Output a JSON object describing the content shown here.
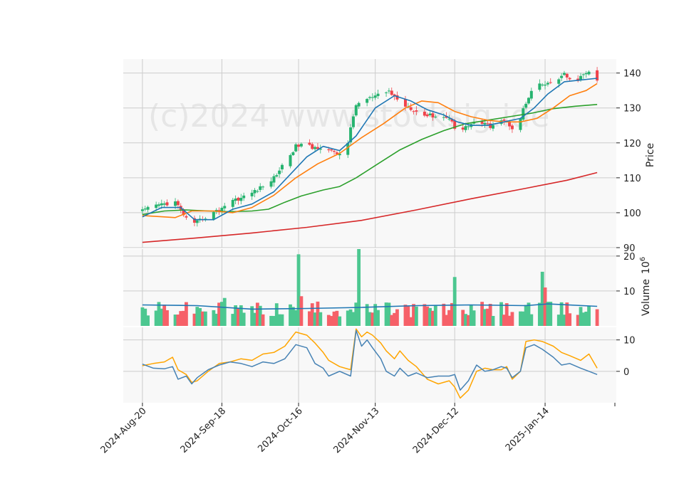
{
  "watermark": "(c)2024 www.stocksig.ide",
  "colors": {
    "up": "#26b36f",
    "down": "#f0434b",
    "up_vol": "#4cc790",
    "down_vol": "#f66068",
    "ma_short": "#1f77b4",
    "ma_mid": "#ff7f0e",
    "ma_long": "#2ca02c",
    "ma_200": "#d62728",
    "vol_ma": "#1f77b4",
    "ind_fast": "#4682b4",
    "ind_slow": "#ffa500",
    "grid": "#cccccc",
    "panel_bg": "#f8f8f8"
  },
  "chart_data": [
    {
      "type": "candlestick",
      "panel": "price",
      "ylabel": "Price",
      "ylim": [
        90,
        144
      ],
      "yticks": [
        90,
        100,
        110,
        120,
        130,
        140
      ],
      "x_range_days": [
        -7,
        173
      ],
      "xtick_labels": [
        "2024-Aug-20",
        "2024-Sep-18",
        "2024-Oct-16",
        "2024-Nov-13",
        "2024-Dec-12",
        "2025-Jan-14"
      ],
      "xtick_days": [
        0,
        29,
        57,
        85,
        114,
        147
      ],
      "candles_anchor": [
        [
          0,
          100.5
        ],
        [
          6,
          102.3
        ],
        [
          12,
          103.0
        ],
        [
          15,
          99.5
        ],
        [
          18,
          96.0
        ],
        [
          21,
          97.8
        ],
        [
          24,
          99.2
        ],
        [
          28,
          100.8
        ],
        [
          32,
          103.5
        ],
        [
          36,
          104.2
        ],
        [
          40,
          105.8
        ],
        [
          44,
          107.5
        ],
        [
          48,
          110.0
        ],
        [
          52,
          114.5
        ],
        [
          56,
          119.0
        ],
        [
          59,
          119.8
        ],
        [
          62,
          118.5
        ],
        [
          66,
          119.0
        ],
        [
          70,
          117.0
        ],
        [
          74,
          116.8
        ],
        [
          78,
          131.0
        ],
        [
          82,
          132.5
        ],
        [
          86,
          133.5
        ],
        [
          90,
          134.8
        ],
        [
          94,
          131.5
        ],
        [
          98,
          130.0
        ],
        [
          102,
          128.0
        ],
        [
          106,
          127.8
        ],
        [
          110,
          127.5
        ],
        [
          113,
          126.5
        ],
        [
          115,
          122.5
        ],
        [
          118,
          124.5
        ],
        [
          121,
          126.0
        ],
        [
          124,
          125.5
        ],
        [
          127,
          124.8
        ],
        [
          130,
          127.0
        ],
        [
          133,
          126.0
        ],
        [
          136,
          123.5
        ],
        [
          139,
          129.5
        ],
        [
          142,
          134.5
        ],
        [
          145,
          136.5
        ],
        [
          148,
          136.8
        ],
        [
          151,
          138.0
        ],
        [
          154,
          139.5
        ],
        [
          157,
          137.0
        ],
        [
          160,
          138.8
        ],
        [
          163,
          140.5
        ],
        [
          166,
          137.5
        ]
      ],
      "ma_short": [
        [
          0,
          98.8
        ],
        [
          7,
          101.5
        ],
        [
          14,
          101.5
        ],
        [
          19,
          98.0
        ],
        [
          26,
          98.0
        ],
        [
          33,
          101.0
        ],
        [
          40,
          102.5
        ],
        [
          48,
          106.0
        ],
        [
          54,
          111.0
        ],
        [
          60,
          116.0
        ],
        [
          66,
          119.0
        ],
        [
          72,
          117.8
        ],
        [
          78,
          122.0
        ],
        [
          85,
          130.0
        ],
        [
          92,
          133.5
        ],
        [
          98,
          132.0
        ],
        [
          104,
          129.5
        ],
        [
          110,
          128.0
        ],
        [
          115,
          126.0
        ],
        [
          120,
          125.0
        ],
        [
          126,
          125.0
        ],
        [
          132,
          126.0
        ],
        [
          138,
          127.0
        ],
        [
          143,
          130.0
        ],
        [
          148,
          134.0
        ],
        [
          154,
          137.5
        ],
        [
          160,
          138.0
        ],
        [
          166,
          138.5
        ]
      ],
      "ma_mid": [
        [
          0,
          99.2
        ],
        [
          8,
          98.8
        ],
        [
          12,
          98.6
        ],
        [
          18,
          100.5
        ],
        [
          26,
          100.5
        ],
        [
          33,
          100.0
        ],
        [
          40,
          101.5
        ],
        [
          48,
          105.0
        ],
        [
          56,
          110.0
        ],
        [
          64,
          114.0
        ],
        [
          72,
          117.0
        ],
        [
          80,
          121.5
        ],
        [
          88,
          125.5
        ],
        [
          96,
          130.0
        ],
        [
          102,
          132.0
        ],
        [
          108,
          131.5
        ],
        [
          114,
          129.0
        ],
        [
          120,
          127.5
        ],
        [
          126,
          126.5
        ],
        [
          132,
          126.0
        ],
        [
          138,
          126.0
        ],
        [
          144,
          127.0
        ],
        [
          150,
          130.0
        ],
        [
          156,
          133.5
        ],
        [
          162,
          135.0
        ],
        [
          166,
          137.0
        ]
      ],
      "ma_long": [
        [
          0,
          99.5
        ],
        [
          8,
          100.5
        ],
        [
          16,
          100.8
        ],
        [
          24,
          100.5
        ],
        [
          32,
          100.3
        ],
        [
          40,
          100.5
        ],
        [
          46,
          101.0
        ],
        [
          52,
          103.0
        ],
        [
          58,
          104.8
        ],
        [
          66,
          106.5
        ],
        [
          72,
          107.5
        ],
        [
          78,
          110.0
        ],
        [
          86,
          114.0
        ],
        [
          94,
          118.0
        ],
        [
          102,
          121.0
        ],
        [
          110,
          123.5
        ],
        [
          118,
          125.5
        ],
        [
          126,
          126.5
        ],
        [
          134,
          127.5
        ],
        [
          142,
          128.5
        ],
        [
          150,
          129.8
        ],
        [
          158,
          130.5
        ],
        [
          166,
          131.0
        ]
      ],
      "ma_200": [
        [
          0,
          91.5
        ],
        [
          20,
          92.8
        ],
        [
          40,
          94.2
        ],
        [
          60,
          95.8
        ],
        [
          80,
          97.8
        ],
        [
          100,
          100.8
        ],
        [
          120,
          104.0
        ],
        [
          140,
          107.0
        ],
        [
          155,
          109.3
        ],
        [
          166,
          111.5
        ]
      ]
    },
    {
      "type": "bar",
      "panel": "volume",
      "ylabel": "Volume",
      "scale_exponent": "10^6",
      "ylim": [
        0,
        22
      ],
      "yticks": [
        10,
        20
      ],
      "notable_bars": [
        [
          57,
          20.5,
          "up"
        ],
        [
          79,
          22.0,
          "up"
        ],
        [
          31,
          13.5,
          "up"
        ],
        [
          114,
          14.0,
          "up"
        ],
        [
          146,
          15.5,
          "up"
        ],
        [
          147,
          11.0,
          "down"
        ],
        [
          17,
          8.5,
          "down"
        ],
        [
          30,
          8.0,
          "up"
        ],
        [
          58,
          8.5,
          "down"
        ]
      ],
      "baseline_volume_range": [
        2.5,
        8.5
      ],
      "ma_volume": [
        [
          0,
          6.0
        ],
        [
          20,
          5.8
        ],
        [
          40,
          4.8
        ],
        [
          60,
          5.0
        ],
        [
          80,
          5.3
        ],
        [
          100,
          5.8
        ],
        [
          120,
          6.0
        ],
        [
          140,
          5.8
        ],
        [
          148,
          6.3
        ],
        [
          166,
          5.6
        ]
      ]
    },
    {
      "type": "line",
      "panel": "indicator",
      "ylim": [
        -10,
        14
      ],
      "yticks": [
        0,
        10
      ],
      "series": [
        {
          "key": "fast",
          "points": [
            [
              0,
              2.3
            ],
            [
              4,
              1.0
            ],
            [
              8,
              0.8
            ],
            [
              11,
              1.5
            ],
            [
              13,
              -2.5
            ],
            [
              16,
              -1.5
            ],
            [
              18,
              -4.0
            ],
            [
              20,
              -2.0
            ],
            [
              24,
              0.5
            ],
            [
              28,
              2.0
            ],
            [
              32,
              3.0
            ],
            [
              36,
              2.5
            ],
            [
              40,
              1.5
            ],
            [
              44,
              3.0
            ],
            [
              48,
              2.5
            ],
            [
              52,
              4.0
            ],
            [
              56,
              8.5
            ],
            [
              60,
              7.5
            ],
            [
              63,
              2.5
            ],
            [
              66,
              1.0
            ],
            [
              68,
              -1.5
            ],
            [
              72,
              0.0
            ],
            [
              76,
              -1.5
            ],
            [
              78,
              13.0
            ],
            [
              80,
              8.0
            ],
            [
              82,
              10.0
            ],
            [
              84,
              7.5
            ],
            [
              87,
              4.0
            ],
            [
              89,
              0.0
            ],
            [
              92,
              -1.5
            ],
            [
              94,
              1.0
            ],
            [
              97,
              -1.5
            ],
            [
              100,
              -0.5
            ],
            [
              104,
              -2.0
            ],
            [
              108,
              -1.5
            ],
            [
              112,
              -1.5
            ],
            [
              114,
              -1.0
            ],
            [
              116,
              -6.0
            ],
            [
              119,
              -3.0
            ],
            [
              122,
              2.0
            ],
            [
              125,
              0.0
            ],
            [
              128,
              0.5
            ],
            [
              131,
              1.5
            ],
            [
              133,
              1.0
            ],
            [
              135,
              -2.0
            ],
            [
              138,
              0.0
            ],
            [
              140,
              7.5
            ],
            [
              143,
              8.5
            ],
            [
              146,
              7.0
            ],
            [
              150,
              4.5
            ],
            [
              153,
              2.0
            ],
            [
              156,
              2.5
            ],
            [
              160,
              1.0
            ],
            [
              163,
              0.0
            ],
            [
              166,
              -1.0
            ]
          ]
        },
        {
          "key": "slow",
          "points": [
            [
              0,
              1.8
            ],
            [
              4,
              2.5
            ],
            [
              8,
              3.0
            ],
            [
              11,
              4.5
            ],
            [
              13,
              0.5
            ],
            [
              16,
              -1.0
            ],
            [
              18,
              -3.5
            ],
            [
              20,
              -3.0
            ],
            [
              24,
              0.0
            ],
            [
              28,
              2.5
            ],
            [
              32,
              3.0
            ],
            [
              36,
              4.0
            ],
            [
              40,
              3.5
            ],
            [
              44,
              5.5
            ],
            [
              48,
              6.0
            ],
            [
              52,
              8.0
            ],
            [
              56,
              12.5
            ],
            [
              60,
              11.5
            ],
            [
              63,
              9.0
            ],
            [
              66,
              6.0
            ],
            [
              68,
              3.5
            ],
            [
              72,
              1.5
            ],
            [
              76,
              0.5
            ],
            [
              78,
              13.5
            ],
            [
              80,
              11.0
            ],
            [
              82,
              12.5
            ],
            [
              84,
              11.5
            ],
            [
              87,
              9.0
            ],
            [
              89,
              6.5
            ],
            [
              92,
              4.0
            ],
            [
              94,
              6.5
            ],
            [
              97,
              3.5
            ],
            [
              100,
              1.5
            ],
            [
              104,
              -2.5
            ],
            [
              108,
              -4.0
            ],
            [
              112,
              -3.0
            ],
            [
              114,
              -5.0
            ],
            [
              116,
              -8.5
            ],
            [
              119,
              -6.0
            ],
            [
              122,
              0.0
            ],
            [
              125,
              1.0
            ],
            [
              128,
              0.5
            ],
            [
              131,
              0.5
            ],
            [
              133,
              1.5
            ],
            [
              135,
              -2.5
            ],
            [
              138,
              0.0
            ],
            [
              140,
              9.5
            ],
            [
              143,
              10.0
            ],
            [
              146,
              9.5
            ],
            [
              150,
              8.0
            ],
            [
              153,
              6.0
            ],
            [
              156,
              5.0
            ],
            [
              160,
              3.5
            ],
            [
              163,
              5.5
            ],
            [
              166,
              1.0
            ]
          ]
        }
      ]
    }
  ]
}
